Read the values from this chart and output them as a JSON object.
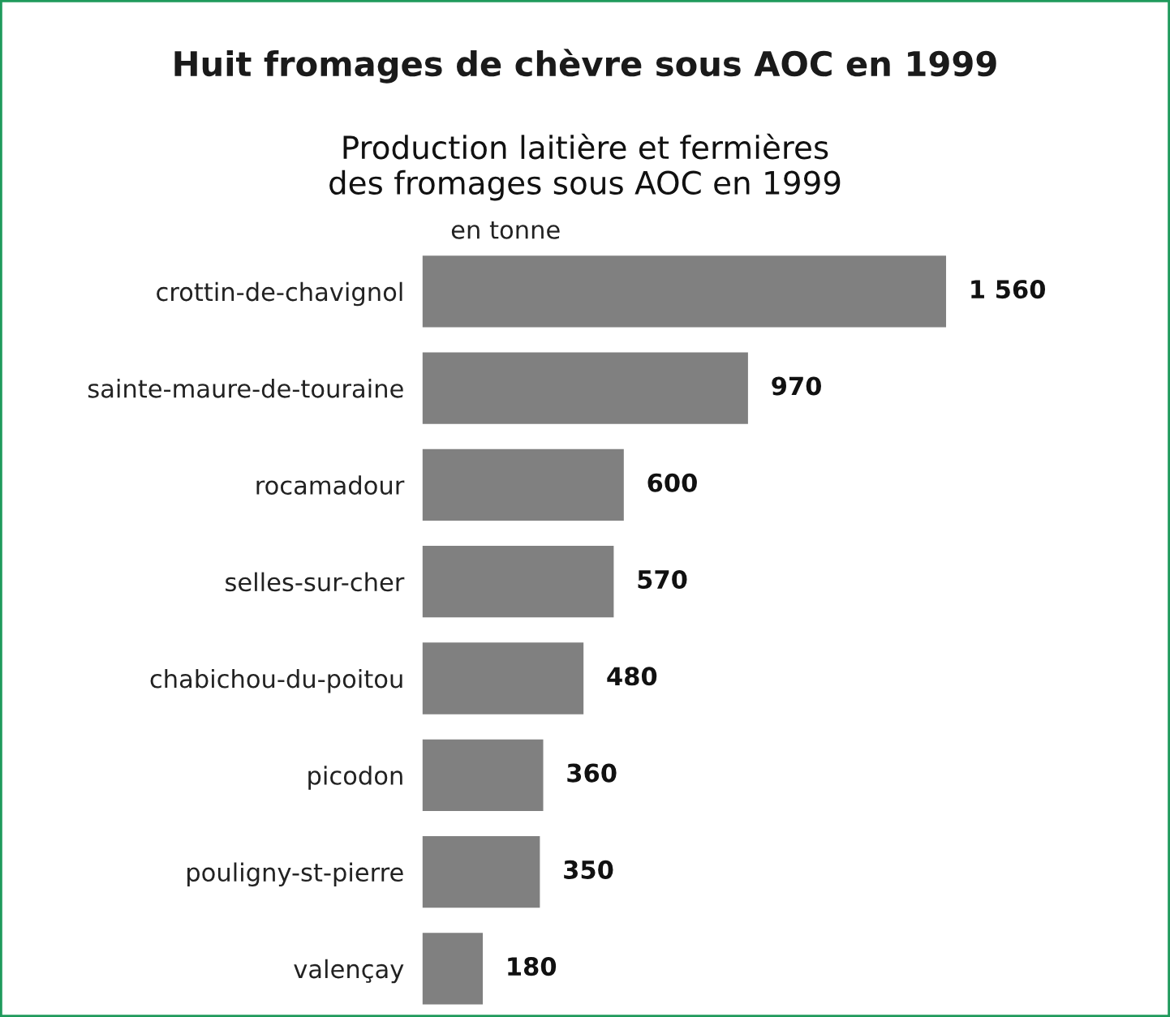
{
  "chart_data": {
    "type": "bar",
    "orientation": "horizontal",
    "title": "Huit fromages de chèvre sous AOC en 1999",
    "subtitle": "Production laitière et fermières\ndes fromages sous AOC en 1999",
    "annotations": [
      "en tonne"
    ],
    "categories": [
      "crottin-de-chavignol",
      "sainte-maure-de-touraine",
      "rocamadour",
      "selles-sur-cher",
      "chabichou-du-poitou",
      "picodon",
      "pouligny-st-pierre",
      "valençay"
    ],
    "values": [
      1560,
      970,
      600,
      570,
      480,
      360,
      350,
      180
    ],
    "value_labels": [
      "1 560",
      "970",
      "600",
      "570",
      "480",
      "360",
      "350",
      "180"
    ],
    "color": "#808080",
    "tick_labels": "y",
    "grid": false,
    "legend": false
  }
}
